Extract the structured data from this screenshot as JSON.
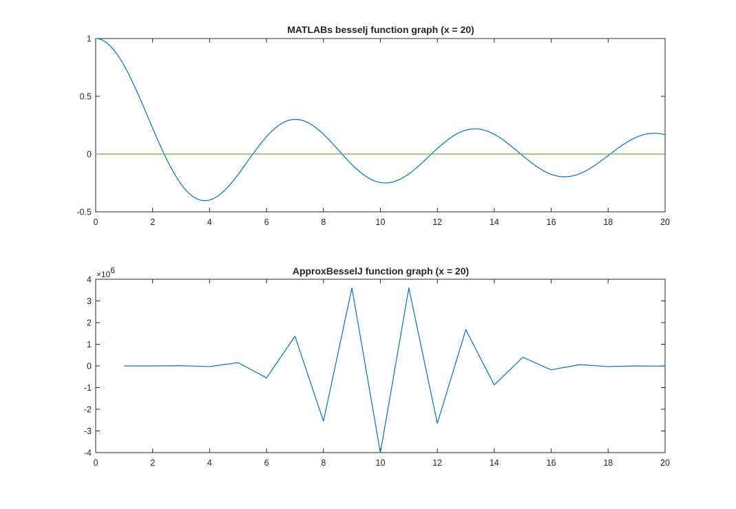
{
  "window": {
    "background": "#ffffff"
  },
  "chart_data": [
    {
      "type": "line",
      "title": "MATLABs besselj function graph (x = 20)",
      "xlabel": "",
      "ylabel": "",
      "xlim": [
        0,
        20
      ],
      "ylim": [
        -0.5,
        1
      ],
      "x_tick_labels": [
        "0",
        "2",
        "4",
        "6",
        "8",
        "10",
        "12",
        "14",
        "16",
        "18",
        "20"
      ],
      "y_tick_labels": [
        "-0.5",
        "0",
        "0.5",
        "1"
      ],
      "box": true,
      "grid": false,
      "series": [
        {
          "function": "besselj(0, x)",
          "x_range": [
            0,
            20
          ],
          "color": "#0072BD"
        },
        {
          "x": [
            0,
            20
          ],
          "values": [
            0,
            0
          ],
          "color": "#77AC30"
        }
      ]
    },
    {
      "type": "line",
      "title": "ApproxBesselJ function graph (x = 20)",
      "xlabel": "",
      "ylabel": "",
      "xlim": [
        0,
        20
      ],
      "ylim": [
        -4,
        4
      ],
      "y_exponent_label": "×10",
      "y_exponent": "6",
      "x_tick_labels": [
        "0",
        "2",
        "4",
        "6",
        "8",
        "10",
        "12",
        "14",
        "16",
        "18",
        "20"
      ],
      "y_tick_labels": [
        "-4",
        "-3",
        "-2",
        "-1",
        "0",
        "1",
        "2",
        "3",
        "4"
      ],
      "box": true,
      "grid": false,
      "series": [
        {
          "x": [
            1,
            2,
            3,
            4,
            5,
            6,
            7,
            8,
            9,
            10,
            11,
            12,
            13,
            14,
            15,
            16,
            17,
            18,
            19,
            20
          ],
          "values": [
            0,
            0,
            0.01,
            -0.03,
            0.15,
            -0.55,
            1.37,
            -2.55,
            3.6,
            -4.0,
            3.6,
            -2.65,
            1.67,
            -0.88,
            0.4,
            -0.18,
            0.06,
            -0.03,
            0,
            -0.01
          ],
          "color": "#0072BD"
        }
      ]
    }
  ]
}
